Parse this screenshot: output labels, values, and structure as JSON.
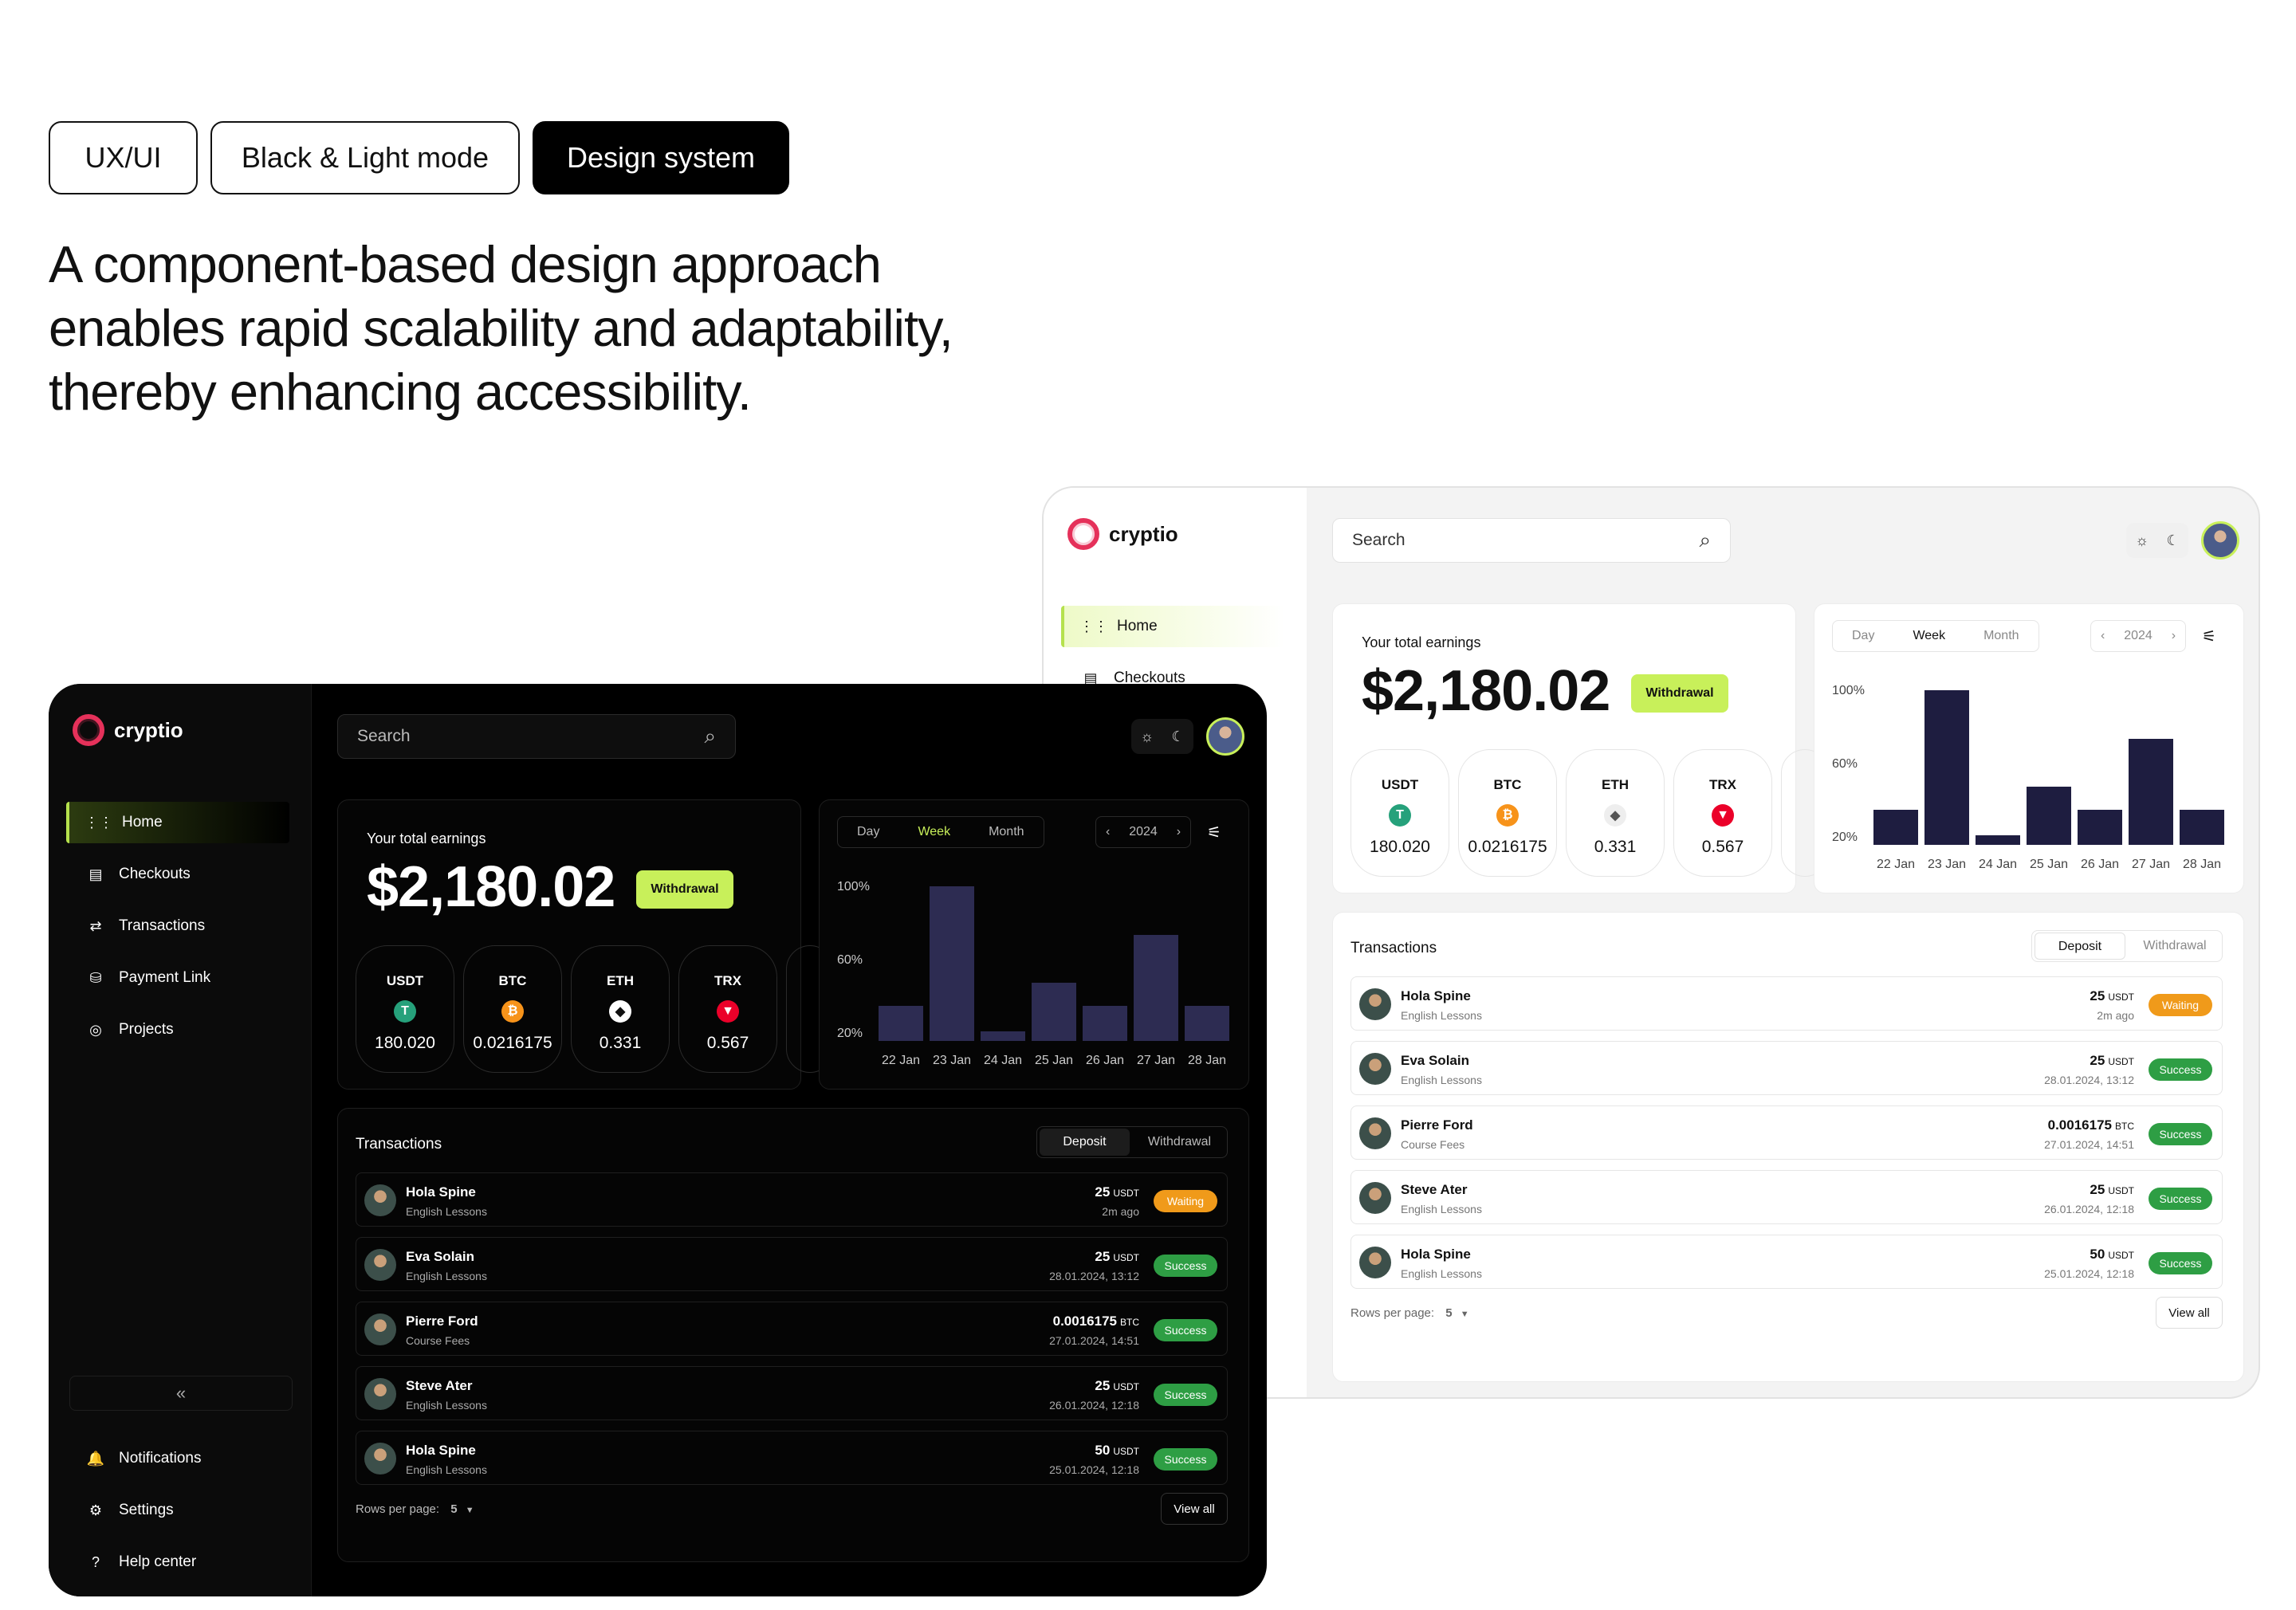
{
  "tags": [
    "UX/UI",
    "Black & Light mode",
    "Design system"
  ],
  "headline": "A component-based design approach enables rapid scalability and adaptability, thereby enhancing accessibility.",
  "app": {
    "name": "cryptio",
    "search_placeholder": "Search",
    "nav_main": [
      "Home",
      "Checkouts",
      "Transactions",
      "Payment Link",
      "Projects"
    ],
    "nav_bottom": [
      "Notifications",
      "Settings",
      "Help center"
    ],
    "earnings_label": "Your total earnings",
    "earnings_value": "$2,180.02",
    "withdrawal_label": "Withdrawal",
    "coins": [
      {
        "symbol": "USDT",
        "value": "180.020",
        "color": "#26a17b",
        "glyph": "T"
      },
      {
        "symbol": "BTC",
        "value": "0.0216175",
        "color": "#f7931a",
        "glyph": "₿"
      },
      {
        "symbol": "ETH",
        "value": "0.331",
        "color": "#ffffff",
        "glyph": "◆"
      },
      {
        "symbol": "TRX",
        "value": "0.567",
        "color": "#eb0029",
        "glyph": "▼"
      }
    ],
    "period_tabs": [
      "Day",
      "Week",
      "Month"
    ],
    "active_period": "Week",
    "year": "2024",
    "transactions_title": "Transactions",
    "tx_tabs": [
      "Deposit",
      "Withdrawal"
    ],
    "transactions": [
      {
        "name": "Hola Spine",
        "sub": "English Lessons",
        "amount": "25",
        "unit": "USDT",
        "date": "2m ago",
        "status": "Waiting"
      },
      {
        "name": "Eva Solain",
        "sub": "English Lessons",
        "amount": "25",
        "unit": "USDT",
        "date": "28.01.2024, 13:12",
        "status": "Success"
      },
      {
        "name": "Pierre Ford",
        "sub": "Course Fees",
        "amount": "0.0016175",
        "unit": "BTC",
        "date": "27.01.2024, 14:51",
        "status": "Success"
      },
      {
        "name": "Steve Ater",
        "sub": "English Lessons",
        "amount": "25",
        "unit": "USDT",
        "date": "26.01.2024, 12:18",
        "status": "Success"
      },
      {
        "name": "Hola Spine",
        "sub": "English Lessons",
        "amount": "50",
        "unit": "USDT",
        "date": "25.01.2024, 12:18",
        "status": "Success"
      }
    ],
    "status_colors": {
      "Waiting": "#f09a1a",
      "Success": "#2e9e44"
    },
    "rows_per_page_label": "Rows per page:",
    "rows_per_page_value": "5",
    "view_all": "View all"
  },
  "chart_data": {
    "type": "bar",
    "categories": [
      "22 Jan",
      "23 Jan",
      "24 Jan",
      "25 Jan",
      "26 Jan",
      "27 Jan",
      "28 Jan"
    ],
    "values": [
      38,
      100,
      22,
      50,
      38,
      75,
      38
    ],
    "y_ticks": [
      "100%",
      "60%",
      "20%"
    ],
    "ylim": [
      20,
      100
    ]
  }
}
